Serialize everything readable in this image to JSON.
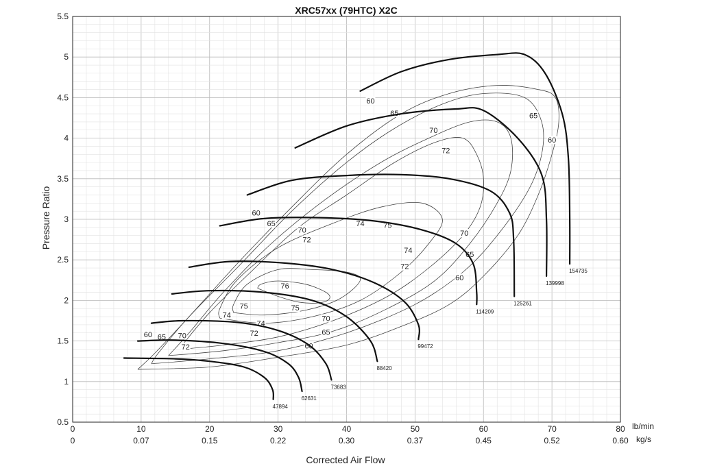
{
  "chart_data": {
    "type": "line",
    "title": "XRC57xx (79HTC) X2C",
    "xlabel": "Corrected Air Flow",
    "ylabel": "Pressure Ratio",
    "xlim": [
      0,
      80
    ],
    "ylim": [
      0.5,
      5.5
    ],
    "x_unit_primary": "lb/min",
    "x_unit_secondary": "kg/s",
    "x_ticks": [
      "0",
      "10",
      "20",
      "30",
      "40",
      "50",
      "60",
      "70",
      "80"
    ],
    "x_ticks_secondary": [
      "0",
      "0.07",
      "0.15",
      "0.22",
      "0.30",
      "0.37",
      "0.45",
      "0.52",
      "0.60"
    ],
    "y_ticks": [
      "0.5",
      "1",
      "1.5",
      "2",
      "2.5",
      "3",
      "3.5",
      "4",
      "4.5",
      "5",
      "5.5"
    ],
    "speed_lines": [
      {
        "name": "47894",
        "points": [
          [
            7.5,
            1.29
          ],
          [
            15,
            1.28
          ],
          [
            20,
            1.25
          ],
          [
            25,
            1.18
          ],
          [
            28,
            1.05
          ],
          [
            29.2,
            0.9
          ],
          [
            29.3,
            0.78
          ]
        ]
      },
      {
        "name": "62631",
        "points": [
          [
            9.5,
            1.5
          ],
          [
            15,
            1.51
          ],
          [
            22,
            1.47
          ],
          [
            28,
            1.37
          ],
          [
            31.5,
            1.22
          ],
          [
            33,
            1.05
          ],
          [
            33.5,
            0.88
          ]
        ]
      },
      {
        "name": "73683",
        "points": [
          [
            11.5,
            1.72
          ],
          [
            16,
            1.75
          ],
          [
            24,
            1.73
          ],
          [
            30,
            1.63
          ],
          [
            34.5,
            1.45
          ],
          [
            37,
            1.22
          ],
          [
            37.8,
            1.02
          ]
        ]
      },
      {
        "name": "88420",
        "points": [
          [
            14.5,
            2.08
          ],
          [
            20,
            2.12
          ],
          [
            28,
            2.1
          ],
          [
            35,
            2.0
          ],
          [
            40,
            1.8
          ],
          [
            43.5,
            1.5
          ],
          [
            44.5,
            1.25
          ]
        ]
      },
      {
        "name": "99472",
        "points": [
          [
            17,
            2.41
          ],
          [
            23,
            2.48
          ],
          [
            31,
            2.46
          ],
          [
            38,
            2.38
          ],
          [
            44,
            2.22
          ],
          [
            48.5,
            1.98
          ],
          [
            50.5,
            1.7
          ],
          [
            50.5,
            1.52
          ]
        ]
      },
      {
        "name": "114209",
        "points": [
          [
            21.5,
            2.92
          ],
          [
            28,
            3.01
          ],
          [
            36,
            3.02
          ],
          [
            44,
            2.98
          ],
          [
            51,
            2.87
          ],
          [
            56,
            2.7
          ],
          [
            58.5,
            2.45
          ],
          [
            59,
            2.1
          ],
          [
            59,
            1.95
          ]
        ]
      },
      {
        "name": "125261",
        "points": [
          [
            25.5,
            3.3
          ],
          [
            32,
            3.48
          ],
          [
            40,
            3.54
          ],
          [
            48,
            3.55
          ],
          [
            55,
            3.5
          ],
          [
            61,
            3.35
          ],
          [
            63.8,
            3.08
          ],
          [
            64.4,
            2.75
          ],
          [
            64.5,
            2.05
          ]
        ]
      },
      {
        "name": "139998",
        "points": [
          [
            32.5,
            3.88
          ],
          [
            40,
            4.15
          ],
          [
            48,
            4.3
          ],
          [
            56,
            4.36
          ],
          [
            60,
            4.34
          ],
          [
            65,
            4.0
          ],
          [
            68.5,
            3.55
          ],
          [
            69.2,
            3.0
          ],
          [
            69.2,
            2.3
          ]
        ]
      },
      {
        "name": "154735",
        "points": [
          [
            42,
            4.58
          ],
          [
            48,
            4.82
          ],
          [
            55,
            4.97
          ],
          [
            62,
            5.03
          ],
          [
            66,
            5.03
          ],
          [
            69,
            4.8
          ],
          [
            71.5,
            4.3
          ],
          [
            72.4,
            3.75
          ],
          [
            72.6,
            3.0
          ],
          [
            72.6,
            2.45
          ]
        ]
      }
    ],
    "efficiency_islands": [
      {
        "label": "76",
        "points": [
          [
            27,
            2.15
          ],
          [
            30,
            2.05
          ],
          [
            33,
            1.98
          ],
          [
            36,
            1.97
          ],
          [
            37.5,
            2.02
          ],
          [
            37,
            2.1
          ],
          [
            34,
            2.2
          ],
          [
            30,
            2.24
          ],
          [
            27.5,
            2.2
          ],
          [
            27,
            2.15
          ]
        ]
      },
      {
        "label": "75",
        "points": [
          [
            23.5,
            1.85
          ],
          [
            28,
            1.82
          ],
          [
            34,
            1.88
          ],
          [
            39,
            2.02
          ],
          [
            42,
            2.25
          ],
          [
            40,
            2.35
          ],
          [
            35,
            2.38
          ],
          [
            30,
            2.38
          ],
          [
            25.5,
            2.2
          ],
          [
            23.5,
            1.95
          ],
          [
            23.5,
            1.85
          ]
        ]
      },
      {
        "label": "74",
        "points": [
          [
            21.5,
            1.78
          ],
          [
            28,
            1.72
          ],
          [
            35,
            1.8
          ],
          [
            42,
            2.0
          ],
          [
            48,
            2.35
          ],
          [
            52,
            2.7
          ],
          [
            54,
            3.0
          ],
          [
            51,
            3.2
          ],
          [
            45,
            3.15
          ],
          [
            38,
            2.95
          ],
          [
            30,
            2.65
          ],
          [
            24,
            2.25
          ],
          [
            21.5,
            1.9
          ],
          [
            21.5,
            1.78
          ]
        ]
      },
      {
        "label": "72",
        "points": [
          [
            16,
            1.4
          ],
          [
            22,
            1.45
          ],
          [
            30,
            1.55
          ],
          [
            38,
            1.75
          ],
          [
            46,
            2.05
          ],
          [
            52,
            2.4
          ],
          [
            57,
            2.8
          ],
          [
            59.5,
            3.15
          ],
          [
            60,
            3.5
          ],
          [
            59,
            3.8
          ],
          [
            57,
            4.0
          ],
          [
            53,
            3.95
          ],
          [
            47,
            3.7
          ],
          [
            40,
            3.3
          ],
          [
            33,
            2.9
          ],
          [
            26,
            2.35
          ],
          [
            20,
            1.85
          ],
          [
            16,
            1.45
          ]
        ]
      },
      {
        "label": "70",
        "points": [
          [
            14,
            1.32
          ],
          [
            22,
            1.38
          ],
          [
            30,
            1.48
          ],
          [
            38,
            1.62
          ],
          [
            46,
            1.9
          ],
          [
            53,
            2.25
          ],
          [
            58,
            2.7
          ],
          [
            62,
            3.2
          ],
          [
            64,
            3.6
          ],
          [
            64,
            4.0
          ],
          [
            62,
            4.2
          ],
          [
            58,
            4.2
          ],
          [
            52,
            4.0
          ],
          [
            45,
            3.7
          ],
          [
            37,
            3.25
          ],
          [
            29,
            2.7
          ],
          [
            22,
            2.1
          ],
          [
            17,
            1.6
          ],
          [
            14,
            1.32
          ]
        ]
      },
      {
        "label": "65",
        "points": [
          [
            11.5,
            1.22
          ],
          [
            20,
            1.28
          ],
          [
            30,
            1.38
          ],
          [
            40,
            1.6
          ],
          [
            50,
            1.95
          ],
          [
            57,
            2.35
          ],
          [
            62,
            2.8
          ],
          [
            66.5,
            3.35
          ],
          [
            68.5,
            3.8
          ],
          [
            68.5,
            4.2
          ],
          [
            66,
            4.5
          ],
          [
            60,
            4.55
          ],
          [
            54,
            4.42
          ],
          [
            47,
            4.12
          ],
          [
            40,
            3.7
          ],
          [
            32,
            3.1
          ],
          [
            24,
            2.4
          ],
          [
            17,
            1.8
          ],
          [
            12.5,
            1.35
          ],
          [
            11.5,
            1.22
          ]
        ]
      },
      {
        "label": "60",
        "points": [
          [
            9.5,
            1.15
          ],
          [
            20,
            1.18
          ],
          [
            30,
            1.3
          ],
          [
            40,
            1.45
          ],
          [
            48,
            1.68
          ],
          [
            55,
            1.95
          ],
          [
            60,
            2.3
          ],
          [
            65,
            2.8
          ],
          [
            68,
            3.3
          ],
          [
            70,
            3.8
          ],
          [
            71,
            4.2
          ],
          [
            70.5,
            4.5
          ],
          [
            68,
            4.6
          ],
          [
            62,
            4.65
          ],
          [
            55,
            4.55
          ],
          [
            48,
            4.3
          ],
          [
            40,
            3.8
          ],
          [
            32,
            3.15
          ],
          [
            24,
            2.45
          ],
          [
            17,
            1.8
          ],
          [
            12,
            1.35
          ],
          [
            9.5,
            1.15
          ]
        ]
      }
    ],
    "efficiency_labels": [
      {
        "text": "60",
        "x": 11,
        "y": 1.58
      },
      {
        "text": "65",
        "x": 13,
        "y": 1.55
      },
      {
        "text": "70",
        "x": 16,
        "y": 1.57
      },
      {
        "text": "72",
        "x": 16.5,
        "y": 1.43
      },
      {
        "text": "74",
        "x": 22.5,
        "y": 1.82
      },
      {
        "text": "75",
        "x": 25,
        "y": 1.93
      },
      {
        "text": "76",
        "x": 31,
        "y": 2.18
      },
      {
        "text": "74",
        "x": 27.5,
        "y": 1.72
      },
      {
        "text": "75",
        "x": 32.5,
        "y": 1.91
      },
      {
        "text": "72",
        "x": 26.5,
        "y": 1.6
      },
      {
        "text": "70",
        "x": 37,
        "y": 1.78
      },
      {
        "text": "65",
        "x": 37,
        "y": 1.61
      },
      {
        "text": "60",
        "x": 34.5,
        "y": 1.44
      },
      {
        "text": "60",
        "x": 26.8,
        "y": 3.08
      },
      {
        "text": "65",
        "x": 29,
        "y": 2.95
      },
      {
        "text": "70",
        "x": 33.5,
        "y": 2.87
      },
      {
        "text": "72",
        "x": 34.2,
        "y": 2.75
      },
      {
        "text": "74",
        "x": 42,
        "y": 2.95
      },
      {
        "text": "75",
        "x": 46,
        "y": 2.93
      },
      {
        "text": "74",
        "x": 49,
        "y": 2.62
      },
      {
        "text": "72",
        "x": 48.5,
        "y": 2.42
      },
      {
        "text": "60",
        "x": 56.5,
        "y": 2.28
      },
      {
        "text": "65",
        "x": 58,
        "y": 2.57
      },
      {
        "text": "70",
        "x": 57.2,
        "y": 2.83
      },
      {
        "text": "60",
        "x": 43.5,
        "y": 4.46
      },
      {
        "text": "65",
        "x": 47,
        "y": 4.31
      },
      {
        "text": "70",
        "x": 52.7,
        "y": 4.1
      },
      {
        "text": "72",
        "x": 54.5,
        "y": 3.85
      },
      {
        "text": "65",
        "x": 67.3,
        "y": 4.28
      },
      {
        "text": "60",
        "x": 70,
        "y": 3.98
      }
    ]
  }
}
